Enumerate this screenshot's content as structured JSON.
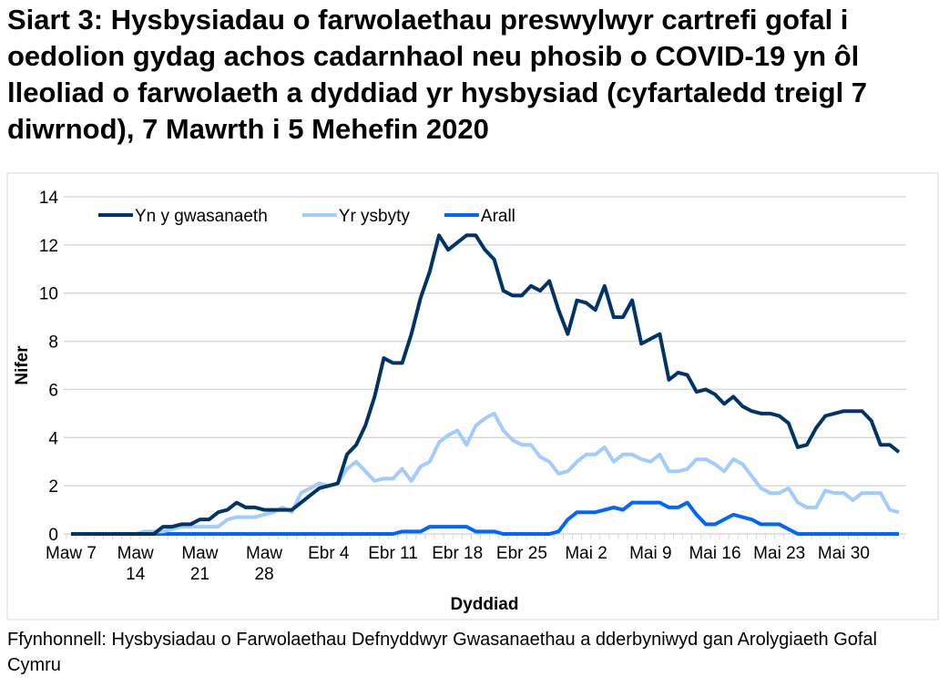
{
  "title": "Siart 3: Hysbysiadau o farwolaethau preswylwyr cartrefi gofal i oedolion gydag achos cadarnhaol neu phosib o COVID-19 yn ôl lleoliad o farwolaeth a dyddiad yr hysbysiad (cyfartaledd treigl 7 diwrnod), 7 Mawrth i 5 Mehefin 2020",
  "source": "Ffynhonnell: Hysbysiadau o Farwolaethau Defnyddwyr Gwasanaethau a dderbyniwyd gan Arolygiaeth Gofal Cymru",
  "chart_data": {
    "type": "line",
    "xlabel": "Dyddiad",
    "ylabel": "Nifer",
    "ylim": [
      0,
      14
    ],
    "yticks": [
      0,
      2,
      4,
      6,
      8,
      10,
      12,
      14
    ],
    "grid": "horizontal",
    "legend": "top-left",
    "x_start": "2020-03-07",
    "x_end": "2020-06-05",
    "xtick_labels": [
      [
        "Maw 7"
      ],
      [
        "Maw",
        "14"
      ],
      [
        "Maw",
        "21"
      ],
      [
        "Maw",
        "28"
      ],
      [
        "Ebr 4"
      ],
      [
        "Ebr 11"
      ],
      [
        "Ebr 18"
      ],
      [
        "Ebr 25"
      ],
      [
        "Mai 2"
      ],
      [
        "Mai 9"
      ],
      [
        "Mai 16"
      ],
      [
        "Mai 23"
      ],
      [
        "Mai 30"
      ]
    ],
    "series": [
      {
        "name": "Yn y gwasanaeth",
        "color": "#003366",
        "values": [
          0,
          0,
          0,
          0,
          0,
          0,
          0,
          0,
          0,
          0,
          0.3,
          0.3,
          0.4,
          0.4,
          0.6,
          0.6,
          0.9,
          1.0,
          1.3,
          1.1,
          1.1,
          1.0,
          1.0,
          1.0,
          1.0,
          1.3,
          1.6,
          1.9,
          2.0,
          2.1,
          3.3,
          3.7,
          4.5,
          5.7,
          7.3,
          7.1,
          7.1,
          8.3,
          9.8,
          10.9,
          12.4,
          11.8,
          12.1,
          12.4,
          12.4,
          11.8,
          11.4,
          10.1,
          9.9,
          9.9,
          10.3,
          10.1,
          10.5,
          9.3,
          8.3,
          9.7,
          9.6,
          9.3,
          10.3,
          9.0,
          9.0,
          9.7,
          7.9,
          8.1,
          8.3,
          6.4,
          6.7,
          6.6,
          5.9,
          6.0,
          5.8,
          5.4,
          5.7,
          5.3,
          5.1,
          5.0,
          5.0,
          4.9,
          4.6,
          3.6,
          3.7,
          4.4,
          4.9,
          5.0,
          5.1,
          5.1,
          5.1,
          4.7,
          3.7,
          3.7,
          3.4
        ]
      },
      {
        "name": "Yr ysbyty",
        "color": "#a3cbff",
        "values": [
          0,
          0,
          0,
          0,
          0,
          0,
          0,
          0,
          0.1,
          0.1,
          0.1,
          0.2,
          0.3,
          0.3,
          0.3,
          0.3,
          0.3,
          0.6,
          0.7,
          0.7,
          0.7,
          0.8,
          0.9,
          1.1,
          0.9,
          1.7,
          1.9,
          2.1,
          2.0,
          2.1,
          2.7,
          3.0,
          2.6,
          2.2,
          2.3,
          2.3,
          2.7,
          2.2,
          2.8,
          3.0,
          3.8,
          4.1,
          4.3,
          3.7,
          4.5,
          4.8,
          5.0,
          4.3,
          3.9,
          3.7,
          3.7,
          3.2,
          3.0,
          2.5,
          2.6,
          3.0,
          3.3,
          3.3,
          3.6,
          3.0,
          3.3,
          3.3,
          3.1,
          3.0,
          3.3,
          2.6,
          2.6,
          2.7,
          3.1,
          3.1,
          2.9,
          2.6,
          3.1,
          2.9,
          2.4,
          1.9,
          1.7,
          1.7,
          1.9,
          1.3,
          1.1,
          1.1,
          1.8,
          1.7,
          1.7,
          1.4,
          1.7,
          1.7,
          1.7,
          1.0,
          0.9
        ]
      },
      {
        "name": "Arall",
        "color": "#0066ff",
        "values": [
          0,
          0,
          0,
          0,
          0,
          0,
          0,
          0,
          0,
          0,
          0,
          0,
          0,
          0,
          0,
          0,
          0,
          0,
          0,
          0,
          0,
          0,
          0,
          0,
          0,
          0,
          0,
          0,
          0,
          0,
          0,
          0,
          0,
          0,
          0,
          0,
          0.1,
          0.1,
          0.1,
          0.3,
          0.3,
          0.3,
          0.3,
          0.3,
          0.1,
          0.1,
          0.1,
          0,
          0,
          0,
          0,
          0,
          0,
          0.1,
          0.6,
          0.9,
          0.9,
          0.9,
          1.0,
          1.1,
          1.0,
          1.3,
          1.3,
          1.3,
          1.3,
          1.1,
          1.1,
          1.3,
          0.8,
          0.4,
          0.4,
          0.6,
          0.8,
          0.7,
          0.6,
          0.4,
          0.4,
          0.4,
          0.2,
          0,
          0,
          0,
          0,
          0,
          0,
          0,
          0,
          0,
          0,
          0,
          0
        ]
      }
    ]
  }
}
